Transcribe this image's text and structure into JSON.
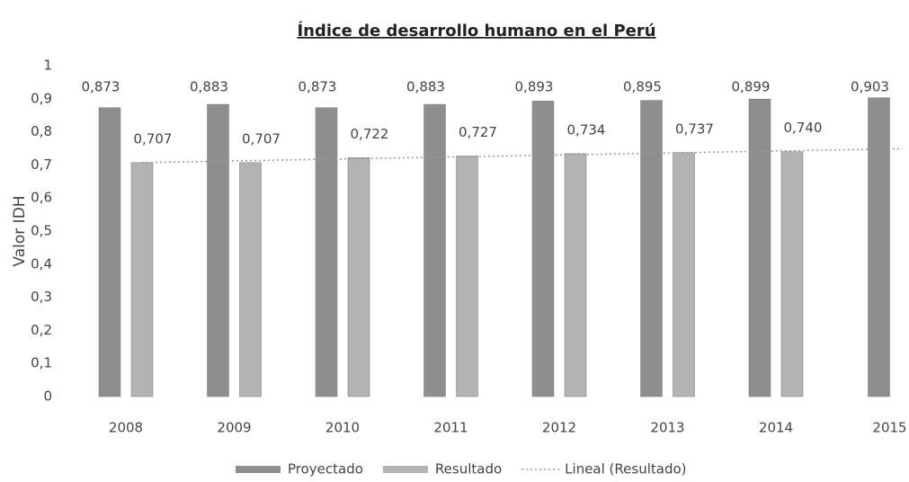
{
  "chart_data": {
    "type": "bar",
    "title": "Índice de desarrollo humano en el Perú",
    "y_label": "Valor IDH",
    "categories": [
      "2008",
      "2009",
      "2010",
      "2011",
      "2012",
      "2013",
      "2014",
      "2015"
    ],
    "series": [
      {
        "name": "Proyectado",
        "color": "#8e8e8e",
        "values": [
          0.873,
          0.883,
          0.873,
          0.883,
          0.893,
          0.895,
          0.899,
          0.903
        ],
        "value_labels": [
          "0,873",
          "0,883",
          "0,873",
          "0,883",
          "0,893",
          "0,895",
          "0,899",
          "0,903"
        ]
      },
      {
        "name": "Resultado",
        "color": "#b3b3b3",
        "values": [
          0.707,
          0.707,
          0.722,
          0.727,
          0.734,
          0.737,
          0.74,
          null
        ],
        "value_labels": [
          "0,707",
          "0,707",
          "0,722",
          "0,727",
          "0,734",
          "0,737",
          "0,740",
          null
        ]
      },
      {
        "name": "Lineal (Resultado)",
        "type": "line",
        "color": "#9a9a9a",
        "dash": "dotted",
        "values": [
          0.707,
          0.713,
          0.719,
          0.725,
          0.731,
          0.737,
          0.743,
          0.749
        ]
      }
    ],
    "ylim": [
      0,
      1
    ],
    "yticks": [
      0,
      {
        "value": 0.1,
        "label": "0,1"
      },
      {
        "value": 0.2,
        "label": "0,2"
      },
      {
        "value": 0.3,
        "label": "0,3"
      },
      {
        "value": 0.4,
        "label": "0,4"
      },
      {
        "value": 0.5,
        "label": "0,5"
      },
      {
        "value": 0.6,
        "label": "0,6"
      },
      {
        "value": 0.7,
        "label": "0,7"
      },
      {
        "value": 0.8,
        "label": "0,8"
      },
      {
        "value": 0.9,
        "label": "0,9"
      },
      1
    ],
    "grid": false,
    "legend": "bottom"
  }
}
